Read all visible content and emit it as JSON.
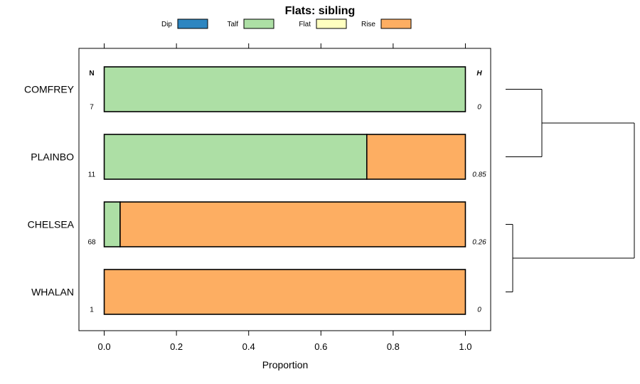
{
  "chart_data": {
    "type": "bar",
    "orientation": "horizontal",
    "stacked": true,
    "title": "Flats: sibling",
    "xlabel": "Proportion",
    "xlim": [
      -0.07,
      1.07
    ],
    "x_ticks": [
      "0.0",
      "0.2",
      "0.4",
      "0.6",
      "0.8",
      "1.0"
    ],
    "x_tick_values": [
      0,
      0.2,
      0.4,
      0.6,
      0.8,
      1.0
    ],
    "legend": {
      "placement": "top",
      "entries": [
        {
          "name": "Dip",
          "color": "#2e86c1"
        },
        {
          "name": "Talf",
          "color": "#addfa5"
        },
        {
          "name": "Flat",
          "color": "#ffffc0"
        },
        {
          "name": "Rise",
          "color": "#fdae62"
        }
      ]
    },
    "categories": [
      "COMFREY",
      "PLAINBO",
      "CHELSEA",
      "WHALAN"
    ],
    "series": [
      {
        "name": "Dip",
        "values": [
          0,
          0,
          0,
          0
        ]
      },
      {
        "name": "Talf",
        "values": [
          1.0,
          0.727,
          0.044,
          0
        ]
      },
      {
        "name": "Flat",
        "values": [
          0,
          0,
          0,
          0
        ]
      },
      {
        "name": "Rise",
        "values": [
          0,
          0.273,
          0.956,
          1.0
        ]
      }
    ],
    "n_header": "N",
    "n_values": [
      "7",
      "11",
      "68",
      "1"
    ],
    "h_header": "H",
    "h_values": [
      "0",
      "0.85",
      "0.26",
      "0"
    ],
    "dendrogram": {
      "groups": [
        [
          "COMFREY",
          "PLAINBO"
        ],
        [
          "CHELSEA",
          "WHALAN"
        ]
      ]
    }
  }
}
